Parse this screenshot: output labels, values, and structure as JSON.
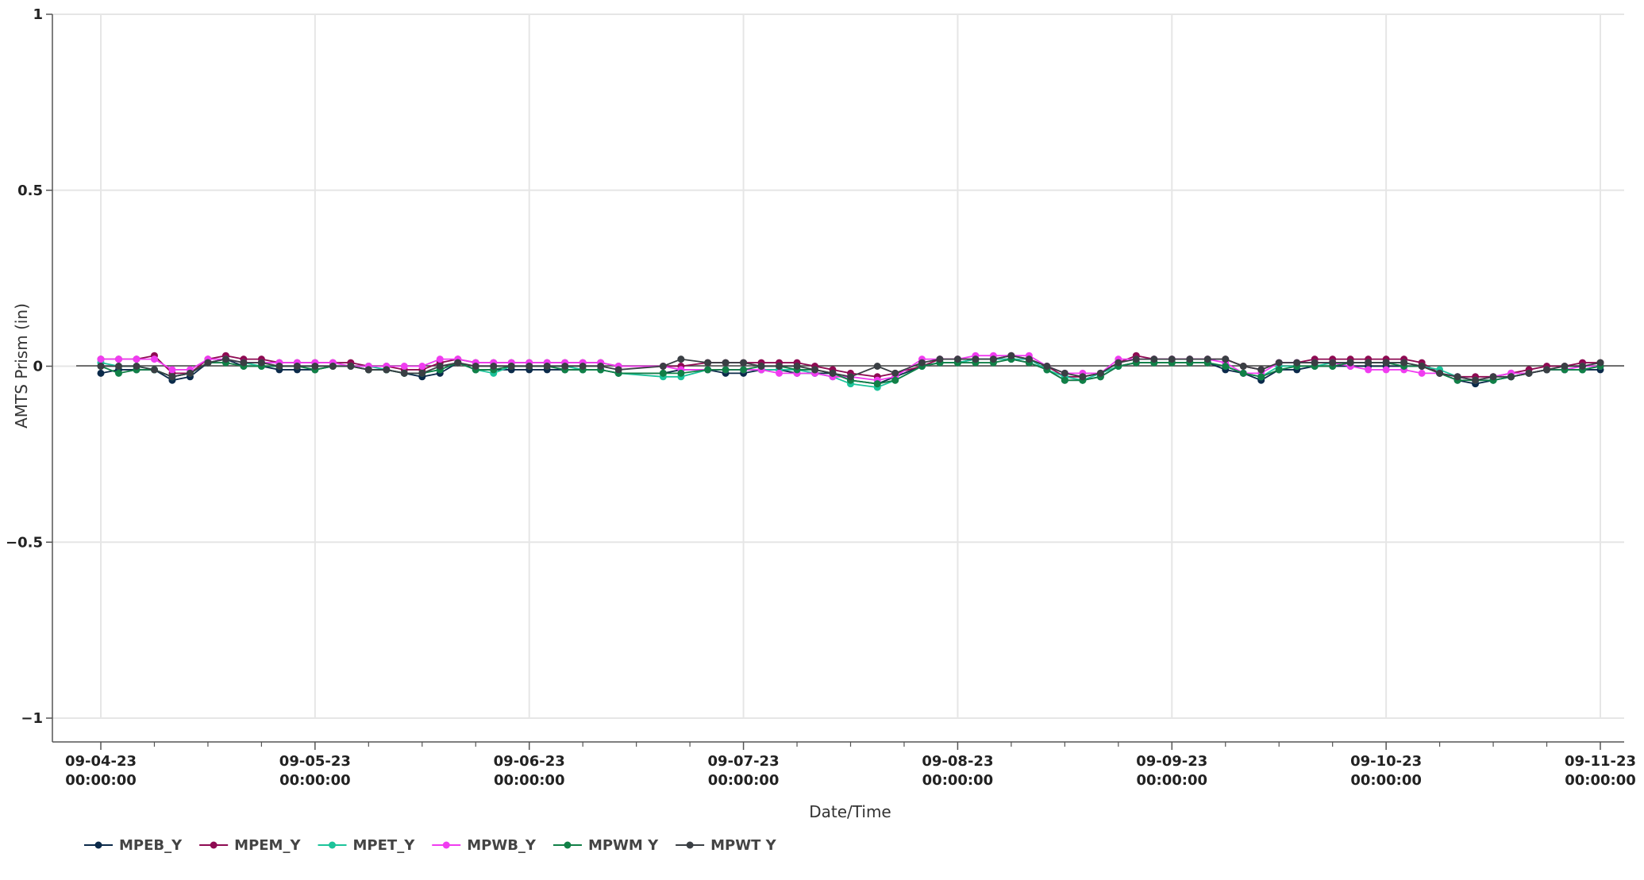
{
  "chart_data": {
    "type": "line",
    "xlabel": "Date/Time",
    "ylabel": "AMTS Prism (in)",
    "ylim": [
      -1,
      1
    ],
    "xlim": [
      "2023-09-04 00:00",
      "2023-09-11 00:00"
    ],
    "grid": true,
    "legend_position": "bottom-left",
    "y_ticks": [
      {
        "value": 1,
        "label": "1"
      },
      {
        "value": 0.5,
        "label": "0.5"
      },
      {
        "value": 0,
        "label": "0"
      },
      {
        "value": -0.5,
        "label": "−0.5"
      },
      {
        "value": -1,
        "label": "−1"
      }
    ],
    "x_ticks": [
      {
        "date": "2023-09-04 00:00",
        "line1": "09-04-23",
        "line2": "00:00:00"
      },
      {
        "date": "2023-09-05 00:00",
        "line1": "09-05-23",
        "line2": "00:00:00"
      },
      {
        "date": "2023-09-06 00:00",
        "line1": "09-06-23",
        "line2": "00:00:00"
      },
      {
        "date": "2023-09-07 00:00",
        "line1": "09-07-23",
        "line2": "00:00:00"
      },
      {
        "date": "2023-09-08 00:00",
        "line1": "09-08-23",
        "line2": "00:00:00"
      },
      {
        "date": "2023-09-09 00:00",
        "line1": "09-09-23",
        "line2": "00:00:00"
      },
      {
        "date": "2023-09-10 00:00",
        "line1": "09-10-23",
        "line2": "00:00:00"
      },
      {
        "date": "2023-09-11 00:00",
        "line1": "09-11-23",
        "line2": "00:00:00"
      }
    ],
    "x": [
      "2023-09-04 00:00",
      "2023-09-04 02:00",
      "2023-09-04 04:00",
      "2023-09-04 06:00",
      "2023-09-04 08:00",
      "2023-09-04 10:00",
      "2023-09-04 12:00",
      "2023-09-04 14:00",
      "2023-09-04 16:00",
      "2023-09-04 18:00",
      "2023-09-04 20:00",
      "2023-09-04 22:00",
      "2023-09-05 00:00",
      "2023-09-05 02:00",
      "2023-09-05 04:00",
      "2023-09-05 06:00",
      "2023-09-05 08:00",
      "2023-09-05 10:00",
      "2023-09-05 12:00",
      "2023-09-05 14:00",
      "2023-09-05 16:00",
      "2023-09-05 18:00",
      "2023-09-05 20:00",
      "2023-09-05 22:00",
      "2023-09-06 00:00",
      "2023-09-06 02:00",
      "2023-09-06 04:00",
      "2023-09-06 06:00",
      "2023-09-06 08:00",
      "2023-09-06 10:00",
      "2023-09-06 15:00",
      "2023-09-06 17:00",
      "2023-09-06 20:00",
      "2023-09-06 22:00",
      "2023-09-07 00:00",
      "2023-09-07 02:00",
      "2023-09-07 04:00",
      "2023-09-07 06:00",
      "2023-09-07 08:00",
      "2023-09-07 10:00",
      "2023-09-07 12:00",
      "2023-09-07 15:00",
      "2023-09-07 17:00",
      "2023-09-07 20:00",
      "2023-09-07 22:00",
      "2023-09-08 00:00",
      "2023-09-08 02:00",
      "2023-09-08 04:00",
      "2023-09-08 06:00",
      "2023-09-08 08:00",
      "2023-09-08 10:00",
      "2023-09-08 12:00",
      "2023-09-08 14:00",
      "2023-09-08 16:00",
      "2023-09-08 18:00",
      "2023-09-08 20:00",
      "2023-09-08 22:00",
      "2023-09-09 00:00",
      "2023-09-09 02:00",
      "2023-09-09 04:00",
      "2023-09-09 06:00",
      "2023-09-09 08:00",
      "2023-09-09 10:00",
      "2023-09-09 12:00",
      "2023-09-09 14:00",
      "2023-09-09 16:00",
      "2023-09-09 18:00",
      "2023-09-09 20:00",
      "2023-09-09 22:00",
      "2023-09-10 00:00",
      "2023-09-10 02:00",
      "2023-09-10 04:00",
      "2023-09-10 06:00",
      "2023-09-10 08:00",
      "2023-09-10 10:00",
      "2023-09-10 12:00",
      "2023-09-10 14:00",
      "2023-09-10 16:00",
      "2023-09-10 18:00",
      "2023-09-10 20:00",
      "2023-09-10 22:00",
      "2023-09-11 00:00"
    ],
    "series": [
      {
        "name": "MPEB_Y",
        "color": "#0b2a4a",
        "values": [
          -0.02,
          -0.01,
          -0.01,
          -0.01,
          -0.04,
          -0.03,
          0.01,
          0.02,
          0.0,
          0.0,
          -0.01,
          -0.01,
          -0.01,
          0.0,
          0.0,
          -0.01,
          -0.01,
          -0.02,
          -0.03,
          -0.02,
          0.01,
          -0.01,
          -0.01,
          -0.01,
          -0.01,
          -0.01,
          -0.01,
          -0.01,
          -0.01,
          -0.02,
          -0.02,
          -0.01,
          -0.01,
          -0.02,
          -0.02,
          -0.01,
          -0.01,
          -0.02,
          -0.02,
          -0.02,
          -0.04,
          -0.05,
          -0.03,
          0.0,
          0.01,
          0.01,
          0.02,
          0.02,
          0.02,
          0.01,
          -0.01,
          -0.04,
          -0.04,
          -0.03,
          0.0,
          0.01,
          0.01,
          0.01,
          0.01,
          0.01,
          -0.01,
          -0.02,
          -0.04,
          -0.01,
          -0.01,
          0.0,
          0.0,
          0.0,
          0.0,
          0.0,
          0.0,
          0.0,
          -0.02,
          -0.04,
          -0.05,
          -0.04,
          -0.03,
          -0.02,
          -0.01,
          -0.01,
          -0.01,
          -0.01
        ]
      },
      {
        "name": "MPEM_Y",
        "color": "#8e0a52",
        "values": [
          0.02,
          0.02,
          0.02,
          0.03,
          -0.02,
          -0.02,
          0.02,
          0.03,
          0.02,
          0.02,
          0.01,
          0.01,
          0.01,
          0.01,
          0.01,
          0.0,
          0.0,
          -0.01,
          -0.01,
          0.01,
          0.02,
          0.01,
          0.01,
          0.01,
          0.01,
          0.01,
          0.01,
          0.01,
          0.01,
          0.0,
          0.0,
          0.0,
          0.01,
          0.01,
          0.01,
          0.01,
          0.01,
          0.01,
          0.0,
          -0.01,
          -0.02,
          -0.03,
          -0.02,
          0.0,
          0.02,
          0.02,
          0.02,
          0.02,
          0.03,
          0.02,
          0.0,
          -0.03,
          -0.03,
          -0.02,
          0.01,
          0.03,
          0.02,
          0.02,
          0.02,
          0.02,
          0.02,
          0.0,
          -0.01,
          0.01,
          0.01,
          0.02,
          0.02,
          0.02,
          0.02,
          0.02,
          0.02,
          0.01,
          -0.02,
          -0.03,
          -0.03,
          -0.03,
          -0.02,
          -0.01,
          0.0,
          0.0,
          0.01,
          0.01
        ]
      },
      {
        "name": "MPET_Y",
        "color": "#1cc39a",
        "values": [
          0.01,
          0.0,
          0.0,
          -0.01,
          -0.03,
          -0.02,
          0.01,
          0.02,
          0.01,
          0.0,
          0.0,
          0.0,
          0.0,
          0.0,
          0.0,
          0.0,
          -0.01,
          -0.02,
          -0.02,
          -0.01,
          0.01,
          -0.01,
          -0.02,
          0.0,
          0.0,
          0.0,
          0.0,
          -0.01,
          -0.01,
          -0.02,
          -0.03,
          -0.03,
          -0.01,
          -0.01,
          -0.01,
          -0.01,
          -0.01,
          -0.01,
          -0.02,
          -0.03,
          -0.05,
          -0.06,
          -0.04,
          0.0,
          0.01,
          0.01,
          0.02,
          0.02,
          0.02,
          0.02,
          -0.01,
          -0.03,
          -0.04,
          -0.02,
          0.0,
          0.01,
          0.01,
          0.01,
          0.01,
          0.01,
          0.0,
          -0.02,
          -0.03,
          0.0,
          0.0,
          0.0,
          0.01,
          0.01,
          0.01,
          0.01,
          0.01,
          0.0,
          -0.01,
          -0.03,
          -0.04,
          -0.04,
          -0.03,
          -0.02,
          -0.01,
          -0.01,
          -0.01,
          0.0
        ]
      },
      {
        "name": "MPWB_Y",
        "color": "#f03cf0",
        "values": [
          0.02,
          0.02,
          0.02,
          0.02,
          -0.01,
          -0.01,
          0.02,
          0.02,
          0.01,
          0.01,
          0.01,
          0.01,
          0.01,
          0.01,
          0.0,
          0.0,
          0.0,
          0.0,
          0.0,
          0.02,
          0.02,
          0.01,
          0.01,
          0.01,
          0.01,
          0.01,
          0.01,
          0.01,
          0.01,
          0.0,
          0.0,
          -0.01,
          -0.01,
          -0.01,
          -0.01,
          -0.01,
          -0.02,
          -0.02,
          -0.02,
          -0.03,
          -0.03,
          -0.04,
          -0.03,
          0.02,
          0.02,
          0.02,
          0.03,
          0.03,
          0.03,
          0.03,
          0.0,
          -0.02,
          -0.02,
          -0.02,
          0.02,
          0.02,
          0.02,
          0.02,
          0.02,
          0.02,
          0.01,
          -0.02,
          -0.02,
          0.01,
          0.01,
          0.01,
          0.01,
          0.0,
          -0.01,
          -0.01,
          -0.01,
          -0.02,
          -0.02,
          -0.03,
          -0.04,
          -0.03,
          -0.02,
          -0.02,
          -0.01,
          -0.01,
          0.0,
          0.0
        ]
      },
      {
        "name": "MPWM Y",
        "color": "#118047",
        "values": [
          0.0,
          -0.02,
          -0.01,
          -0.01,
          -0.03,
          -0.02,
          0.01,
          0.01,
          0.0,
          0.0,
          0.0,
          0.0,
          -0.01,
          0.0,
          0.0,
          -0.01,
          -0.01,
          -0.02,
          -0.02,
          -0.01,
          0.01,
          -0.01,
          -0.01,
          0.0,
          0.0,
          0.0,
          -0.01,
          -0.01,
          -0.01,
          -0.02,
          -0.02,
          -0.02,
          -0.01,
          -0.01,
          -0.01,
          0.0,
          0.0,
          -0.01,
          -0.01,
          -0.02,
          -0.04,
          -0.05,
          -0.04,
          0.0,
          0.01,
          0.01,
          0.01,
          0.01,
          0.02,
          0.01,
          -0.01,
          -0.04,
          -0.04,
          -0.03,
          0.0,
          0.01,
          0.01,
          0.01,
          0.01,
          0.01,
          0.0,
          -0.02,
          -0.03,
          -0.01,
          0.0,
          0.0,
          0.0,
          0.01,
          0.01,
          0.01,
          0.0,
          0.0,
          -0.02,
          -0.04,
          -0.04,
          -0.04,
          -0.03,
          -0.02,
          -0.01,
          -0.01,
          -0.01,
          0.0
        ]
      },
      {
        "name": "MPWT Y",
        "color": "#3a3f44",
        "values": [
          0.0,
          0.0,
          0.0,
          -0.01,
          -0.03,
          -0.02,
          0.01,
          0.02,
          0.01,
          0.01,
          0.0,
          0.0,
          0.0,
          0.0,
          0.0,
          -0.01,
          -0.01,
          -0.02,
          -0.02,
          0.0,
          0.01,
          0.0,
          0.0,
          0.0,
          0.0,
          0.0,
          0.0,
          0.0,
          0.0,
          -0.01,
          0.0,
          0.02,
          0.01,
          0.01,
          0.01,
          0.0,
          0.0,
          0.0,
          -0.01,
          -0.02,
          -0.03,
          0.0,
          -0.02,
          0.01,
          0.02,
          0.02,
          0.02,
          0.02,
          0.03,
          0.02,
          0.0,
          -0.02,
          -0.03,
          -0.02,
          0.01,
          0.02,
          0.02,
          0.02,
          0.02,
          0.02,
          0.02,
          0.0,
          -0.01,
          0.01,
          0.01,
          0.01,
          0.01,
          0.01,
          0.01,
          0.01,
          0.01,
          0.0,
          -0.02,
          -0.03,
          -0.04,
          -0.03,
          -0.03,
          -0.02,
          -0.01,
          0.0,
          0.0,
          0.01
        ]
      }
    ]
  }
}
